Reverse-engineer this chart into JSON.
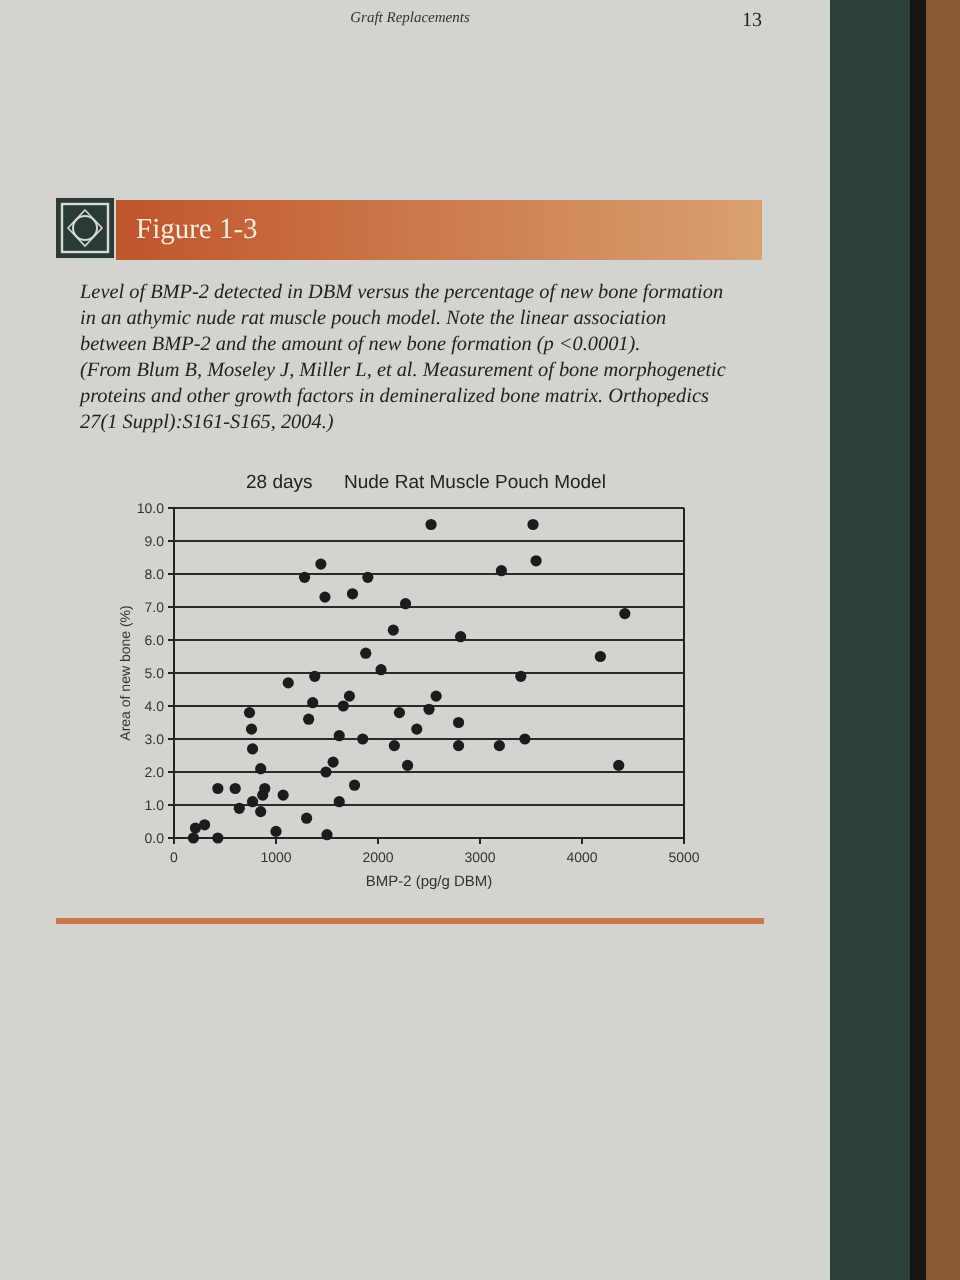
{
  "chart_data": {
    "type": "scatter",
    "subtitle": "28 days",
    "title": "Nude Rat Muscle Pouch Model",
    "xlabel": "BMP-2 (pg/g DBM)",
    "ylabel": "Area of new bone (%)",
    "annotations": [
      "Graft Replacements",
      "13",
      "Figure 1-3",
      "Level of BMP-2 detected in DBM versus the percentage of new bone formation",
      "in an athymic nude rat muscle pouch model. Note the linear association",
      "between BMP-2 and the amount of new bone formation (p <0.0001).",
      "(From Blum B, Moseley J, Miller L, et al. Measurement of bone morphogenetic",
      "proteins and other growth factors in demineralized bone matrix. Orthopedics",
      "27(1 Suppl):S161-S165, 2004.)"
    ],
    "series": [
      {
        "color": "#1c1c1c",
        "x": [
          190,
          210,
          300,
          430,
          430,
          600,
          640,
          740,
          760,
          770,
          770,
          850,
          850,
          870,
          890,
          1000,
          1070,
          1120,
          1280,
          1300,
          1320,
          1360,
          1380,
          1440,
          1480,
          1490,
          1500,
          1560,
          1620,
          1620,
          1660,
          1720,
          1750,
          1770,
          1850,
          1880,
          1900,
          2030,
          2150,
          2160,
          2210,
          2270,
          2290,
          2380,
          2500,
          2520,
          2570,
          2790,
          2790,
          2810,
          3190,
          3210,
          3400,
          3440,
          3520,
          3550,
          4180,
          4360,
          4420
        ],
        "values": [
          0.0,
          0.3,
          0.4,
          0.0,
          1.5,
          1.5,
          0.9,
          3.8,
          3.3,
          2.7,
          1.1,
          2.1,
          0.8,
          1.3,
          1.5,
          0.2,
          1.3,
          4.7,
          7.9,
          0.6,
          3.6,
          4.1,
          4.9,
          8.3,
          7.3,
          2.0,
          0.1,
          2.3,
          3.1,
          1.1,
          4.0,
          4.3,
          7.4,
          1.6,
          3.0,
          5.6,
          7.9,
          5.1,
          6.3,
          2.8,
          3.8,
          7.1,
          2.2,
          3.3,
          3.9,
          9.5,
          4.3,
          3.5,
          2.8,
          6.1,
          2.8,
          8.1,
          4.9,
          3.0,
          9.5,
          8.4,
          5.5,
          2.2,
          6.8
        ]
      }
    ],
    "xlim": [
      0,
      5000
    ],
    "xticks": [
      0,
      1000,
      2000,
      3000,
      4000,
      5000
    ],
    "ylim": [
      0,
      10
    ],
    "yticks": [
      {
        "value": 0,
        "label": "0.0"
      },
      {
        "value": 1,
        "label": "1.0"
      },
      {
        "value": 2,
        "label": "2.0"
      },
      {
        "value": 3,
        "label": "3.0"
      },
      {
        "value": 4,
        "label": "4.0"
      },
      {
        "value": 5,
        "label": "5.0"
      },
      {
        "value": 6,
        "label": "6.0"
      },
      {
        "value": 7,
        "label": "7.0"
      },
      {
        "value": 8,
        "label": "8.0"
      },
      {
        "value": 9,
        "label": "9.0"
      },
      {
        "value": 10,
        "label": "10.0"
      }
    ],
    "grid": "y",
    "marker": "circle"
  }
}
